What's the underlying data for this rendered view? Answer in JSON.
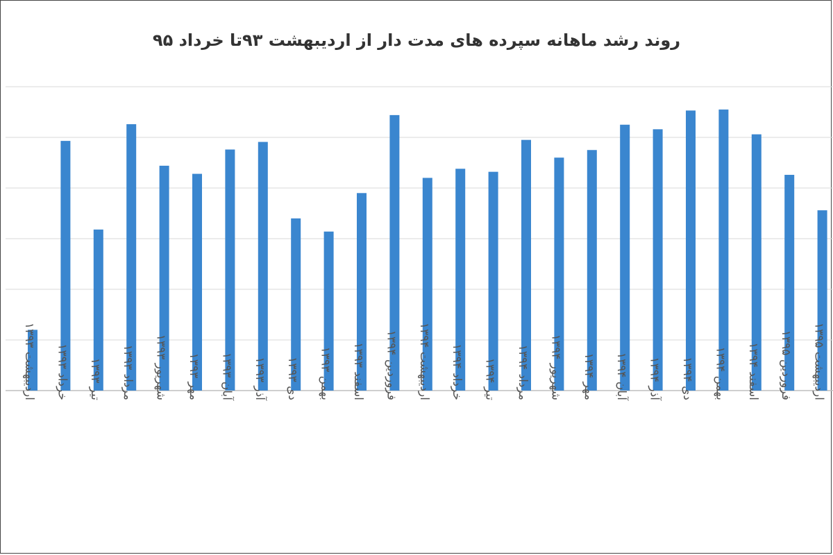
{
  "chart_data": {
    "type": "bar",
    "title": "روند رشد ماهانه سپرده های مدت دار از اردیبهشت ۹۳تا خرداد ۹۵",
    "xlabel": "",
    "ylabel": "",
    "ylim": [
      0,
      6
    ],
    "grid": true,
    "legend": "none",
    "bar_color": "#3a86cf",
    "categories": [
      "اردیبهشت ۱۳۹۳",
      "خرداد ۱۳۹۳",
      "تیر ۱۳۹۳",
      "مرداد ۱۳۹۳",
      "شهریور ۱۳۹۳",
      "مهر ۱۳۹۳",
      "آبان ۱۳۹۳",
      "آذر ۱۳۹۳",
      "دی ۱۳۹۳",
      "بهمن ۱۳۹۳",
      "اسفند ۱۳۹۳",
      "فروردین ۱۳۹۴",
      "اردیبهشت ۱۳۹۴",
      "خرداد ۱۳۹۴",
      "تیر ۱۳۹۴",
      "مرداد ۱۳۹۴",
      "شهریور ۱۳۹۴",
      "مهر ۱۳۹۴",
      "آبان ۱۳۹۴",
      "آذر ۱۳۹۴",
      "دی ۱۳۹۴",
      "بهمن ۱۳۹۴",
      "اسفند ۱۳۹۴",
      "فروردین ۱۳۹۵",
      "اردیبهشت ۱۳۹۵"
    ],
    "values": [
      1.2,
      4.93,
      3.18,
      5.26,
      4.44,
      4.28,
      4.76,
      4.91,
      3.4,
      3.14,
      3.9,
      5.44,
      4.2,
      4.38,
      4.32,
      4.95,
      4.6,
      4.75,
      5.25,
      5.16,
      5.53,
      5.55,
      5.06,
      4.26,
      3.56
    ]
  }
}
